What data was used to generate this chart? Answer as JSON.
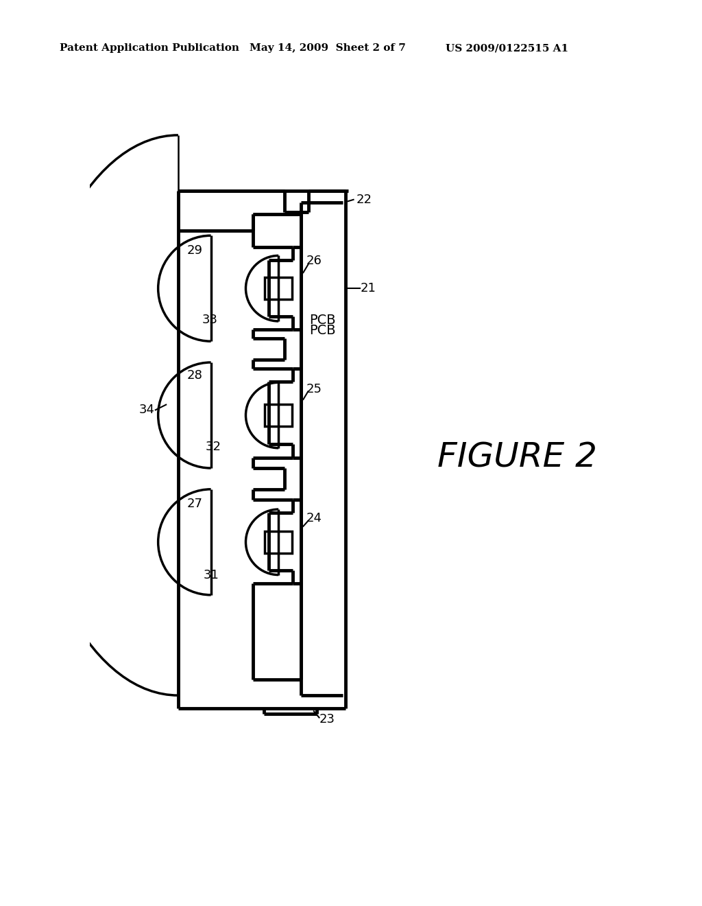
{
  "title_left": "Patent Application Publication",
  "title_center": "May 14, 2009  Sheet 2 of 7",
  "title_right": "US 2009/0122515 A1",
  "figure_label": "FIGURE 2",
  "bg_color": "#ffffff",
  "line_color": "#000000",
  "header_fontsize": 11,
  "figure_fontsize": 36,
  "label_fontsize": 13
}
